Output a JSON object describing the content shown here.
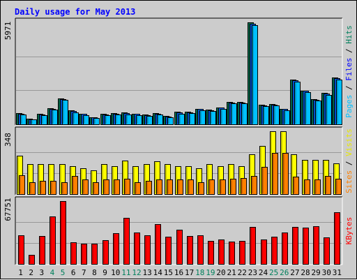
{
  "chart_data": {
    "type": "bar",
    "title": "Daily usage for May 2013",
    "categories": [
      "1",
      "2",
      "3",
      "4",
      "5",
      "6",
      "7",
      "8",
      "9",
      "10",
      "11",
      "12",
      "13",
      "14",
      "15",
      "16",
      "17",
      "18",
      "19",
      "20",
      "21",
      "22",
      "23",
      "24",
      "25",
      "26",
      "27",
      "28",
      "29",
      "30",
      "31"
    ],
    "weekend_days": [
      "4",
      "5",
      "11",
      "12",
      "18",
      "19",
      "25",
      "26"
    ],
    "panels": [
      {
        "id": "hits-files-pages",
        "max_label": "5971",
        "max": 5971,
        "right_label": [
          {
            "text": "Pages",
            "color": "#00c0ff"
          },
          {
            "text": " / ",
            "color": "#000000"
          },
          {
            "text": "Files",
            "color": "#0000ff"
          },
          {
            "text": " / ",
            "color": "#000000"
          },
          {
            "text": "Hits",
            "color": "#00805c"
          }
        ],
        "series": [
          {
            "name": "Hits",
            "color": "#00805c",
            "values": [
              640,
              320,
              620,
              960,
              1520,
              810,
              620,
              420,
              620,
              640,
              680,
              620,
              560,
              660,
              490,
              720,
              730,
              900,
              850,
              1000,
              1300,
              1300,
              5971,
              1140,
              1170,
              900,
              2610,
              1980,
              1470,
              1830,
              2720
            ]
          },
          {
            "name": "Files",
            "color": "#0066ff",
            "values": [
              610,
              300,
              590,
              920,
              1490,
              780,
              600,
              400,
              590,
              610,
              650,
              600,
              530,
              630,
              460,
              690,
              700,
              880,
              830,
              970,
              1280,
              1270,
              5900,
              1110,
              1150,
              880,
              2580,
              1950,
              1450,
              1800,
              2700
            ]
          },
          {
            "name": "Pages",
            "color": "#00c0ff",
            "values": [
              560,
              270,
              540,
              860,
              1420,
              700,
              540,
              350,
              540,
              560,
              590,
              540,
              480,
              570,
              400,
              630,
              640,
              820,
              770,
              920,
              1220,
              1210,
              5800,
              1050,
              1100,
              820,
              2500,
              1870,
              1380,
              1730,
              2620
            ]
          }
        ]
      },
      {
        "id": "visits-sites",
        "max_label": "348",
        "max": 348,
        "right_label": [
          {
            "text": "Sites",
            "color": "#ff8000"
          },
          {
            "text": " / ",
            "color": "#000000"
          },
          {
            "text": "Visits",
            "color": "#e8e800"
          }
        ],
        "series": [
          {
            "name": "Visits",
            "color": "#ffff00",
            "values": [
              214,
              165,
              165,
              165,
              165,
              155,
              144,
              133,
              165,
              155,
              187,
              155,
              165,
              180,
              165,
              155,
              155,
              144,
              165,
              155,
              165,
              155,
              220,
              265,
              348,
              348,
              220,
              190,
              190,
              190,
              170
            ]
          },
          {
            "name": "Sites",
            "color": "#ff8000",
            "values": [
              104,
              65,
              75,
              75,
              65,
              100,
              80,
              65,
              80,
              80,
              85,
              65,
              75,
              80,
              80,
              80,
              80,
              65,
              80,
              80,
              85,
              90,
              100,
              150,
              230,
              230,
              95,
              80,
              80,
              100,
              85
            ]
          }
        ]
      },
      {
        "id": "kbytes",
        "max_label": "67751",
        "max": 67751,
        "right_label": [
          {
            "text": "KBytes",
            "color": "#ff0000"
          }
        ],
        "series": [
          {
            "name": "KBytes",
            "color": "#ff0000",
            "values": [
              30500,
              10000,
              30000,
              51500,
              67751,
              23000,
              22000,
              22000,
              25500,
              33000,
              50000,
              34000,
              31000,
              43000,
              29000,
              37000,
              30000,
              31000,
              25000,
              26000,
              24000,
              25000,
              40000,
              26000,
              29000,
              34000,
              40000,
              39500,
              41000,
              28500,
              56000
            ]
          }
        ]
      }
    ]
  }
}
